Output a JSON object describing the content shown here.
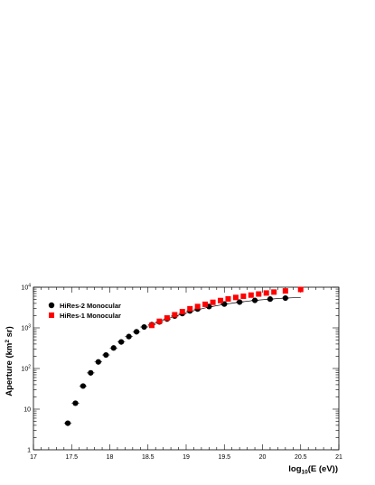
{
  "chart_data": {
    "type": "scatter",
    "xlabel": "log",
    "xlabel_sub": "10",
    "xlabel_rest": "(E (eV))",
    "ylabel": "Aperture (km",
    "ylabel_sup": "2",
    "ylabel_rest": " sr)",
    "xlim": [
      17,
      21
    ],
    "ylim": [
      1,
      10000
    ],
    "yscale": "log",
    "x_ticks": [
      "17",
      "17.5",
      "18",
      "18.5",
      "19",
      "19.5",
      "20",
      "20.5",
      "21"
    ],
    "y_ticks": [
      {
        "base": "1",
        "exp": ""
      },
      {
        "base": "10",
        "exp": ""
      },
      {
        "base": "10",
        "exp": "2"
      },
      {
        "base": "10",
        "exp": "3"
      },
      {
        "base": "10",
        "exp": "4"
      }
    ],
    "legend_position": "top-left",
    "series": [
      {
        "name": "HiRes-2 Monocular",
        "marker": "circle",
        "color": "#000000",
        "x": [
          17.45,
          17.55,
          17.65,
          17.75,
          17.85,
          17.95,
          18.05,
          18.15,
          18.25,
          18.35,
          18.45,
          18.55,
          18.65,
          18.75,
          18.85,
          18.95,
          19.05,
          19.15,
          19.3,
          19.5,
          19.7,
          19.9,
          20.1,
          20.3
        ],
        "y": [
          4.5,
          14,
          37,
          78,
          145,
          215,
          320,
          450,
          610,
          800,
          1050,
          1200,
          1400,
          1650,
          1950,
          2250,
          2600,
          2900,
          3350,
          3850,
          4300,
          4750,
          5100,
          5400
        ]
      },
      {
        "name": "HiRes-1 Monocular",
        "marker": "square",
        "color": "#ff0000",
        "x": [
          18.55,
          18.65,
          18.75,
          18.85,
          18.95,
          19.05,
          19.15,
          19.25,
          19.35,
          19.45,
          19.55,
          19.65,
          19.75,
          19.85,
          19.95,
          20.05,
          20.15,
          20.3,
          20.5
        ],
        "y": [
          1150,
          1450,
          1750,
          2100,
          2500,
          2950,
          3350,
          3800,
          4250,
          4700,
          5150,
          5600,
          6000,
          6400,
          6800,
          7200,
          7600,
          8100,
          8800
        ]
      }
    ],
    "fit_line": {
      "x": [
        18.5,
        18.7,
        18.9,
        19.1,
        19.3,
        19.5,
        19.7,
        19.9,
        20.1,
        20.3,
        20.5
      ],
      "y": [
        1100,
        1550,
        2050,
        2650,
        3250,
        3800,
        4300,
        4750,
        5100,
        5400,
        5600
      ]
    }
  }
}
